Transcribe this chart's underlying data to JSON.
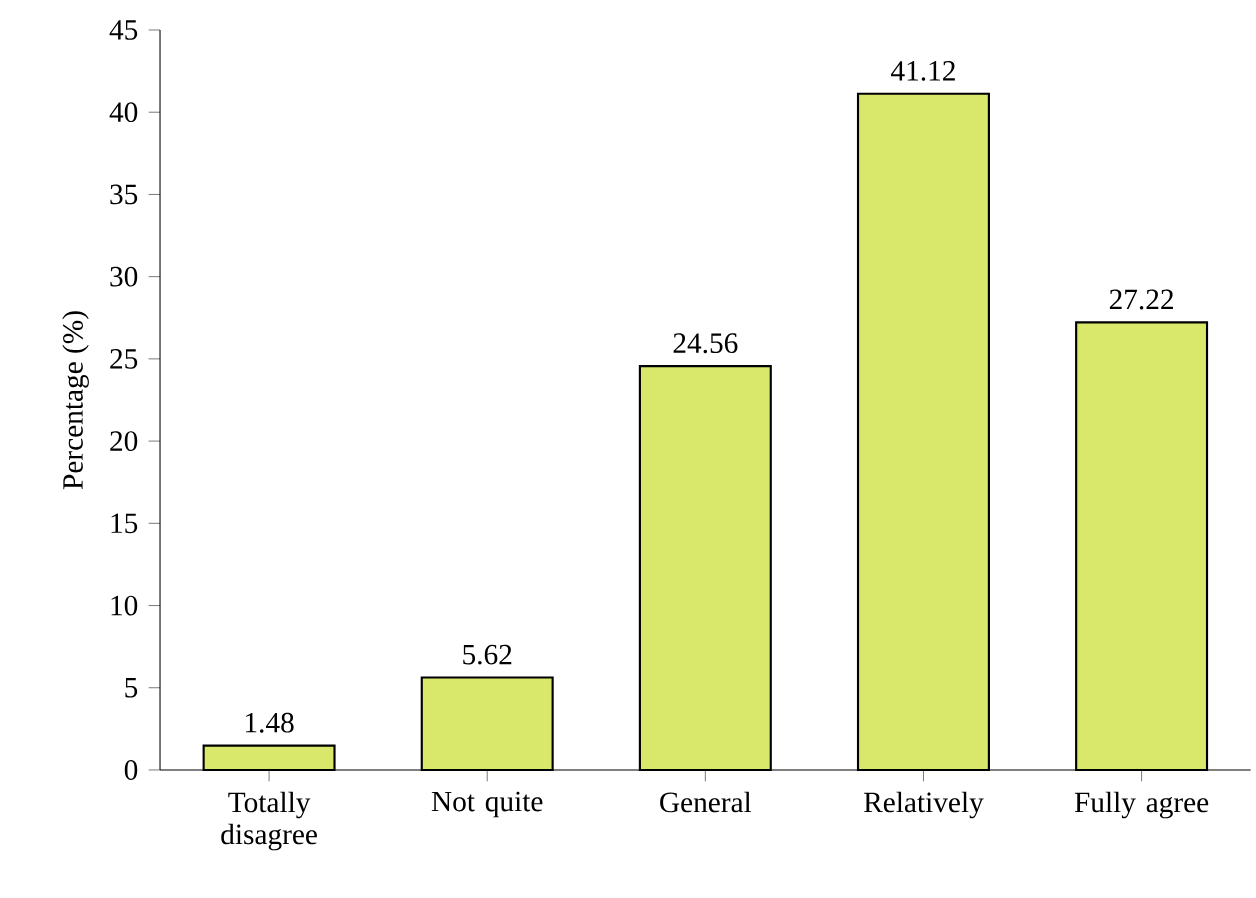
{
  "chart_data": {
    "type": "bar",
    "ylabel": "Percentage (%)",
    "categories": [
      "Totally disagree",
      "Not quite",
      "General",
      "Relatively",
      "Fully agree"
    ],
    "values": [
      1.48,
      5.62,
      24.56,
      41.12,
      27.22
    ],
    "color": "#d9e86a",
    "ylim": [
      0,
      45
    ],
    "yticks": [
      0,
      5,
      10,
      15,
      20,
      25,
      30,
      35,
      40,
      45
    ],
    "data_labels": true,
    "grid": false
  }
}
